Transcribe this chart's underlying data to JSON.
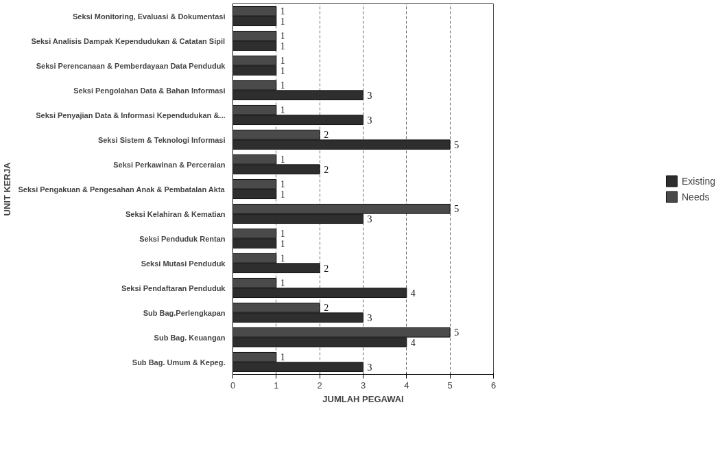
{
  "chart_data": {
    "type": "bar",
    "orientation": "horizontal",
    "xlabel": "JUMLAH PEGAWAI",
    "ylabel": "UNIT KERJA",
    "categories": [
      "Seksi Monitoring, Evaluasi & Dokumentasi",
      "Seksi Analisis Dampak Kependudukan & Catatan Sipil",
      "Seksi Perencanaan & Pemberdayaan Data Penduduk",
      "Seksi Pengolahan Data & Bahan Informasi",
      "Seksi Penyajian Data & Informasi Kependudukan &...",
      "Seksi Sistem & Teknologi Informasi",
      "Seksi Perkawinan & Perceraian",
      "Seksi Pengakuan & Pengesahan Anak & Pembatalan Akta",
      "Seksi Kelahiran & Kematian",
      "Seksi Penduduk Rentan",
      "Seksi Mutasi Penduduk",
      "Seksi Pendaftaran Penduduk",
      "Sub Bag.Perlengkapan",
      "Sub Bag. Keuangan",
      "Sub Bag. Umum & Kepeg."
    ],
    "series": [
      {
        "name": "Existing",
        "color": "#2e2e2e",
        "values": [
          1,
          1,
          1,
          3,
          3,
          5,
          2,
          1,
          3,
          1,
          2,
          4,
          3,
          4,
          3
        ]
      },
      {
        "name": "Needs",
        "color": "#4a4a4a",
        "values": [
          1,
          1,
          1,
          1,
          1,
          2,
          1,
          1,
          5,
          1,
          1,
          1,
          2,
          5,
          1
        ]
      }
    ],
    "xlim": [
      0,
      6
    ],
    "xticks": [
      0,
      1,
      2,
      3,
      4,
      5,
      6
    ],
    "grid": "x",
    "legend": "right",
    "data_labels": true
  }
}
